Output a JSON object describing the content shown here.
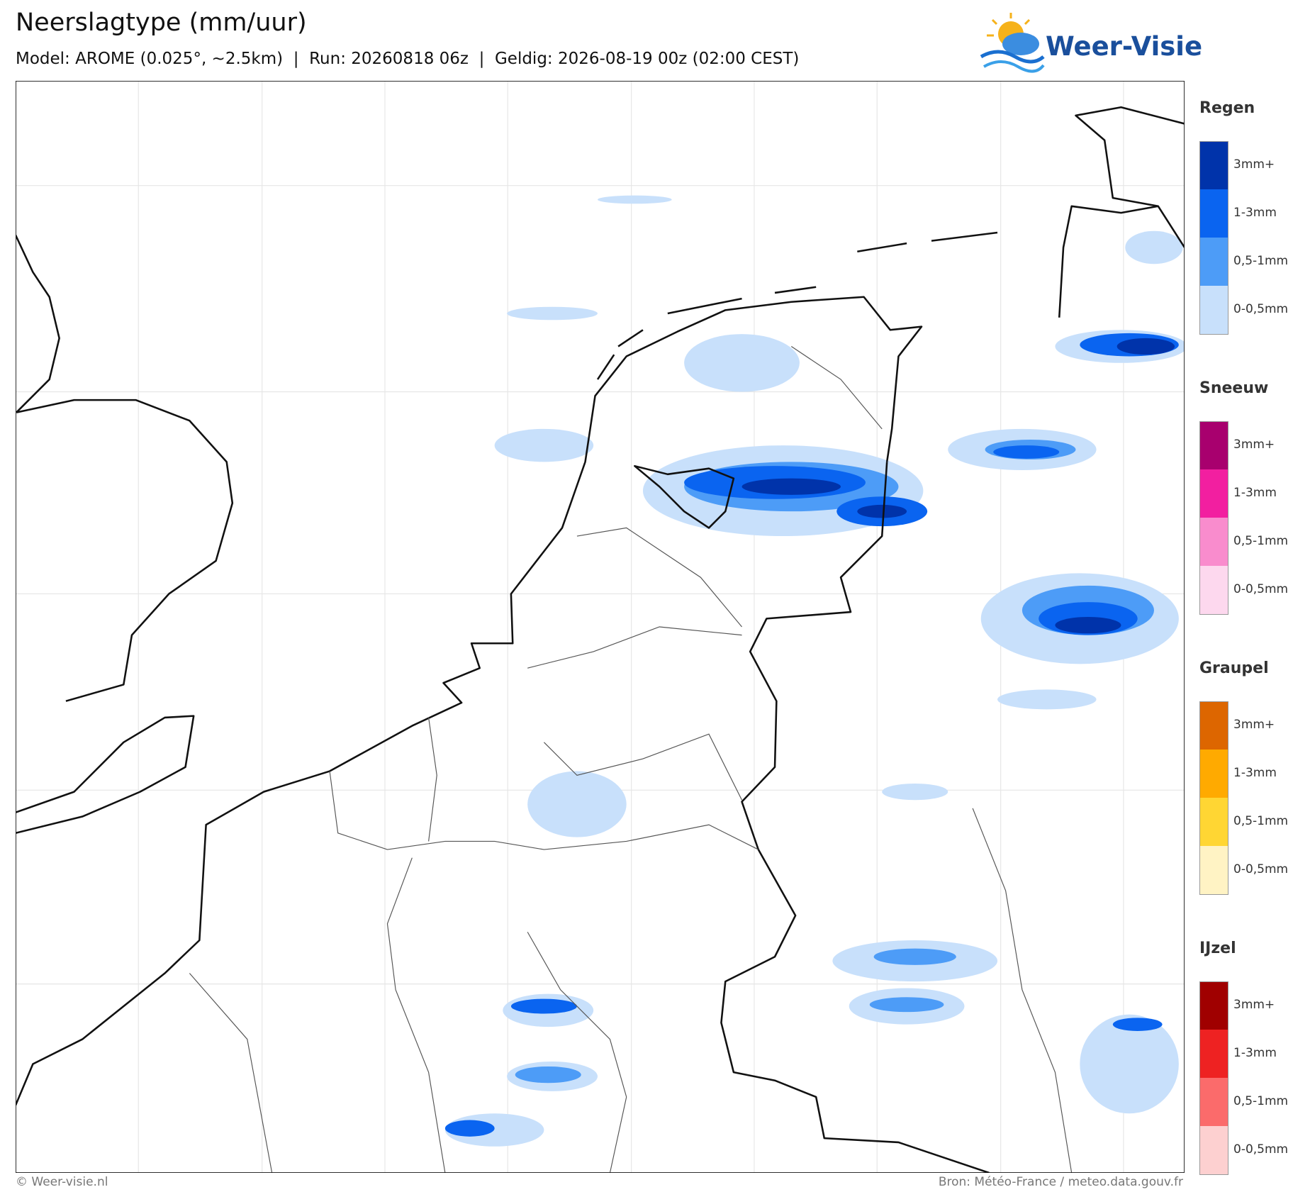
{
  "header": {
    "title": "Neerslagtype (mm/uur)",
    "subtitle": "Model: AROME (0.025°, ~2.5km)  |  Run: 20260818 06z  |  Geldig: 2026-08-19 00z (02:00 CEST)",
    "logo": "Weer-Visie"
  },
  "legend": [
    {
      "title": "Regen",
      "items": [
        {
          "label": "3mm+",
          "color": "#0033aa"
        },
        {
          "label": "1-3mm",
          "color": "#0a64f0"
        },
        {
          "label": "0,5-1mm",
          "color": "#4d9cf7"
        },
        {
          "label": "0-0,5mm",
          "color": "#c8e0fb"
        }
      ]
    },
    {
      "title": "Sneeuw",
      "items": [
        {
          "label": "3mm+",
          "color": "#a8006e"
        },
        {
          "label": "1-3mm",
          "color": "#f21fa0"
        },
        {
          "label": "0,5-1mm",
          "color": "#f98ccd"
        },
        {
          "label": "0-0,5mm",
          "color": "#fdd8ee"
        }
      ]
    },
    {
      "title": "Graupel",
      "items": [
        {
          "label": "3mm+",
          "color": "#dd6600"
        },
        {
          "label": "1-3mm",
          "color": "#ffaa00"
        },
        {
          "label": "0,5-1mm",
          "color": "#ffd633"
        },
        {
          "label": "0-0,5mm",
          "color": "#fff3c4"
        }
      ]
    },
    {
      "title": "IJzel",
      "items": [
        {
          "label": "3mm+",
          "color": "#a00000"
        },
        {
          "label": "1-3mm",
          "color": "#ee2222"
        },
        {
          "label": "0,5-1mm",
          "color": "#fb6b6b"
        },
        {
          "label": "0-0,5mm",
          "color": "#fdd0d0"
        }
      ]
    }
  ],
  "footer": {
    "left": "© Weer-visie.nl",
    "right": "Bron: Météo-France / meteo.data.gouv.fr"
  }
}
